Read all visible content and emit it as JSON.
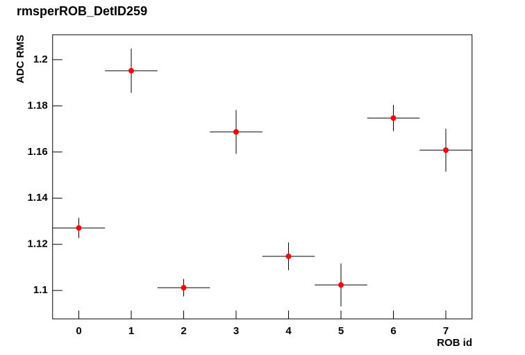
{
  "chart_data": {
    "type": "errorbar",
    "title": "rmsperROB_DetID259",
    "x_label": "ROB id",
    "y_label": "ADC RMS",
    "x": [
      0,
      1,
      2,
      3,
      4,
      5,
      6,
      7
    ],
    "values": [
      1.1271,
      1.1952,
      1.1012,
      1.1687,
      1.1148,
      1.1024,
      1.1747,
      1.1608
    ],
    "errors": [
      0.0044,
      0.0096,
      0.0038,
      0.0095,
      0.006,
      0.0093,
      0.0057,
      0.0093
    ],
    "x_errors": [
      0.5,
      0.5,
      0.5,
      0.5,
      0.5,
      0.5,
      0.5,
      0.5
    ],
    "color": "#ff0000",
    "xlim": [
      -0.5,
      7.5
    ],
    "ylim": [
      1.0877,
      1.2108
    ],
    "xticks": [
      0,
      1,
      2,
      3,
      4,
      5,
      6,
      7
    ],
    "yticks": [
      1.1,
      1.12,
      1.14,
      1.16,
      1.18,
      1.2
    ],
    "grid": false
  }
}
